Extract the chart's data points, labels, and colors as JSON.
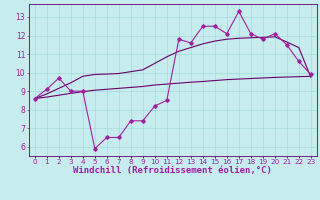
{
  "bg_color": "#c6ecee",
  "grid_color": "#a8d8dc",
  "line_color1": "#a020a0",
  "line_color2": "#6b006b",
  "x_values": [
    0,
    1,
    2,
    3,
    4,
    5,
    6,
    7,
    8,
    9,
    10,
    11,
    12,
    13,
    14,
    15,
    16,
    17,
    18,
    19,
    20,
    21,
    22,
    23
  ],
  "series1": [
    8.6,
    9.1,
    9.7,
    9.0,
    9.0,
    5.9,
    6.5,
    6.5,
    7.4,
    7.4,
    8.2,
    8.5,
    11.8,
    11.6,
    12.5,
    12.5,
    12.1,
    13.3,
    12.1,
    11.8,
    12.1,
    11.5,
    10.6,
    9.9
  ],
  "series2": [
    8.6,
    8.85,
    9.15,
    9.45,
    9.8,
    9.9,
    9.92,
    9.95,
    10.05,
    10.15,
    10.5,
    10.85,
    11.15,
    11.35,
    11.55,
    11.7,
    11.8,
    11.85,
    11.88,
    11.9,
    11.93,
    11.65,
    11.35,
    9.75
  ],
  "series3": [
    8.6,
    8.68,
    8.78,
    8.88,
    8.97,
    9.05,
    9.1,
    9.15,
    9.2,
    9.25,
    9.33,
    9.38,
    9.43,
    9.48,
    9.52,
    9.57,
    9.62,
    9.65,
    9.68,
    9.71,
    9.74,
    9.76,
    9.78,
    9.8
  ],
  "xlabel": "Windchill (Refroidissement éolien,°C)",
  "ylabel_ticks": [
    6,
    7,
    8,
    9,
    10,
    11,
    12,
    13
  ],
  "ylim": [
    5.5,
    13.7
  ],
  "xlim": [
    -0.5,
    23.5
  ],
  "tick_fontsize": 5.5,
  "xlabel_fontsize": 6.5
}
